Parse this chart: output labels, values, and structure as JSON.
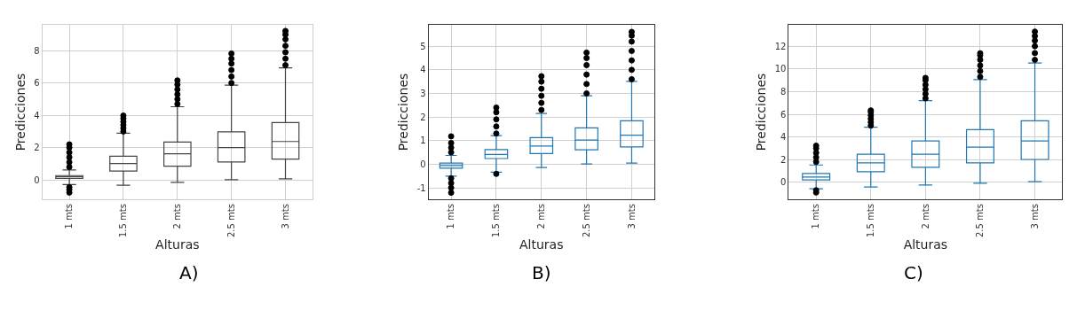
{
  "chart_data": [
    {
      "type": "box",
      "xlabel": "Alturas",
      "ylabel": "Predicciones",
      "categories": [
        "1 mts",
        "1.5 mts",
        "2 mts",
        "2.5 mts",
        "3 mts"
      ],
      "ylim": [
        -1.2,
        9.6
      ],
      "yticks": [
        0,
        2,
        4,
        6,
        8
      ],
      "grid": true,
      "annotations": [
        "A)"
      ],
      "series": [
        {
          "color": "#444444",
          "boxes": [
            {
              "low": -0.29,
              "q1": 0.1,
              "median": 0.2,
              "q3": 0.27,
              "high": 0.62,
              "outliers": [
                -0.78,
                -0.6,
                -0.45,
                0.8,
                1.1,
                1.4,
                1.7,
                2.0,
                2.2
              ]
            },
            {
              "low": -0.33,
              "q1": 0.55,
              "median": 1.02,
              "q3": 1.47,
              "high": 2.89,
              "outliers": [
                3.0,
                3.2,
                3.4,
                3.6,
                3.8,
                3.98
              ]
            },
            {
              "low": -0.15,
              "q1": 0.85,
              "median": 1.62,
              "q3": 2.35,
              "high": 4.53,
              "outliers": [
                4.7,
                5.0,
                5.3,
                5.6,
                5.9,
                6.16
              ]
            },
            {
              "low": 0.02,
              "q1": 1.11,
              "median": 2.0,
              "q3": 2.98,
              "high": 5.87,
              "outliers": [
                6.0,
                6.4,
                6.8,
                7.2,
                7.5,
                7.82
              ]
            },
            {
              "low": 0.07,
              "q1": 1.29,
              "median": 2.38,
              "q3": 3.55,
              "high": 6.93,
              "outliers": [
                7.1,
                7.5,
                7.9,
                8.3,
                8.7,
                9.0,
                9.22
              ]
            }
          ]
        }
      ]
    },
    {
      "type": "box",
      "xlabel": "Alturas",
      "ylabel": "Predicciones",
      "categories": [
        "1 mts",
        "1.5 mts",
        "2 mts",
        "2.5 mts",
        "3 mts"
      ],
      "ylim": [
        -1.49,
        5.91
      ],
      "yticks": [
        -1,
        0,
        1,
        2,
        3,
        4,
        5
      ],
      "grid": true,
      "annotations": [
        "B)"
      ],
      "series": [
        {
          "color": "#1f77b4",
          "boxes": [
            {
              "low": -0.51,
              "q1": -0.17,
              "median": -0.06,
              "q3": 0.05,
              "high": 0.37,
              "outliers": [
                -1.21,
                -1.0,
                -0.8,
                -0.6,
                0.5,
                0.7,
                0.9,
                1.18
              ]
            },
            {
              "low": -0.34,
              "q1": 0.24,
              "median": 0.41,
              "q3": 0.62,
              "high": 1.21,
              "outliers": [
                -0.41,
                1.3,
                1.6,
                1.9,
                2.2,
                2.4
              ]
            },
            {
              "low": -0.14,
              "q1": 0.45,
              "median": 0.77,
              "q3": 1.13,
              "high": 2.15,
              "outliers": [
                2.3,
                2.6,
                2.9,
                3.2,
                3.5,
                3.73
              ]
            },
            {
              "low": 0.01,
              "q1": 0.61,
              "median": 1.02,
              "q3": 1.54,
              "high": 2.9,
              "outliers": [
                3.0,
                3.4,
                3.8,
                4.2,
                4.5,
                4.73
              ]
            },
            {
              "low": 0.05,
              "q1": 0.73,
              "median": 1.23,
              "q3": 1.84,
              "high": 3.51,
              "outliers": [
                3.6,
                4.0,
                4.4,
                4.8,
                5.2,
                5.45,
                5.61
              ]
            }
          ]
        }
      ]
    },
    {
      "type": "box",
      "xlabel": "Alturas",
      "ylabel": "Predicciones",
      "categories": [
        "1 mts",
        "1.5 mts",
        "2 mts",
        "2.5 mts",
        "3 mts"
      ],
      "ylim": [
        -1.5,
        13.89
      ],
      "yticks": [
        0,
        2,
        4,
        6,
        8,
        10,
        12
      ],
      "grid": true,
      "annotations": [
        "C)"
      ],
      "series": [
        {
          "color": "#1f77b4",
          "boxes": [
            {
              "low": -0.57,
              "q1": 0.21,
              "median": 0.47,
              "q3": 0.78,
              "high": 1.53,
              "outliers": [
                -0.9,
                -0.7,
                1.8,
                2.2,
                2.6,
                3.0,
                3.23
              ]
            },
            {
              "low": -0.41,
              "q1": 0.93,
              "median": 1.71,
              "q3": 2.48,
              "high": 4.86,
              "outliers": [
                5.0,
                5.3,
                5.6,
                5.9,
                6.2,
                6.34
              ]
            },
            {
              "low": -0.23,
              "q1": 1.32,
              "median": 2.48,
              "q3": 3.65,
              "high": 7.21,
              "outliers": [
                7.4,
                7.8,
                8.2,
                8.6,
                9.0,
                9.21
              ]
            },
            {
              "low": -0.08,
              "q1": 1.71,
              "median": 3.1,
              "q3": 4.65,
              "high": 9.05,
              "outliers": [
                9.3,
                9.8,
                10.3,
                10.8,
                11.2,
                11.38
              ]
            },
            {
              "low": 0.05,
              "q1": 2.02,
              "median": 3.65,
              "q3": 5.43,
              "high": 10.52,
              "outliers": [
                10.8,
                11.4,
                12.0,
                12.5,
                12.9,
                13.29
              ]
            }
          ]
        }
      ]
    }
  ]
}
